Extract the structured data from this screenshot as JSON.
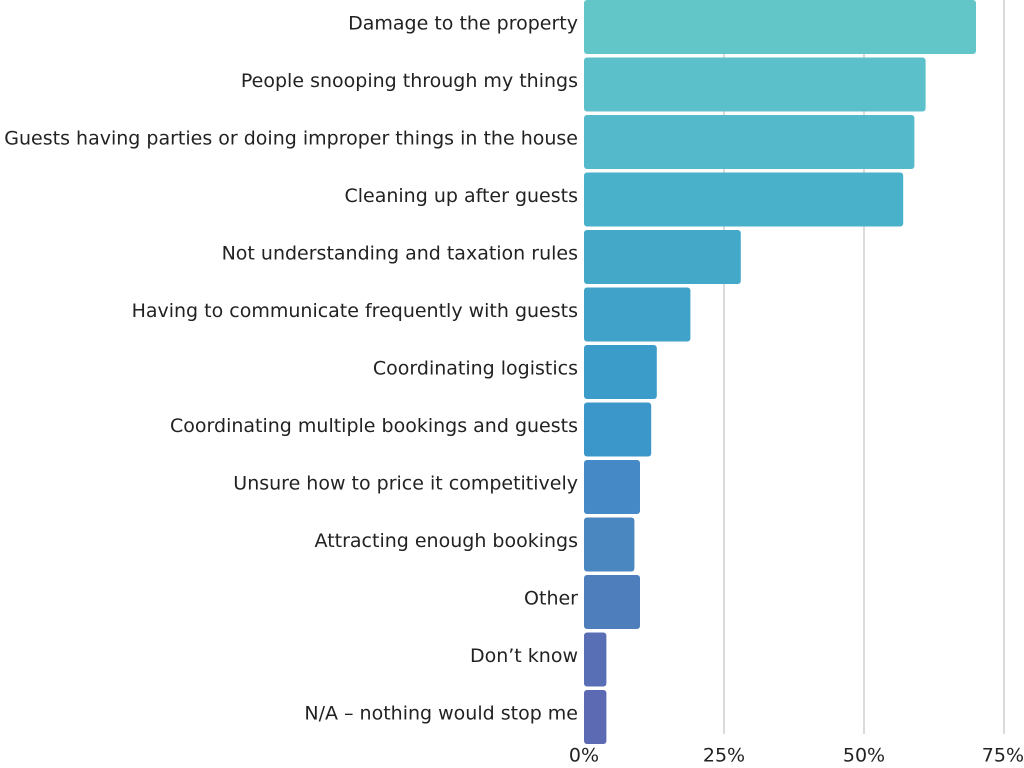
{
  "chart_data": {
    "type": "bar",
    "orientation": "horizontal",
    "categories": [
      "Damage to the property",
      "People snooping through my things",
      "Guests having parties or doing improper things in the house",
      "Cleaning up after guests",
      "Not understanding and taxation rules",
      "Having to communicate frequently with guests",
      "Coordinating logistics",
      "Coordinating multiple bookings and guests",
      "Unsure how to price it competitively",
      "Attracting enough bookings",
      "Other",
      "Don’t know",
      "N/A – nothing would stop me"
    ],
    "values": [
      70,
      61,
      59,
      57,
      28,
      19,
      13,
      12,
      10,
      9,
      10,
      4,
      4
    ],
    "xlim": [
      0,
      75
    ],
    "xticks": [
      0,
      25,
      50,
      75
    ],
    "xtick_labels": [
      "0%",
      "25%",
      "50%",
      "75%"
    ],
    "grid": true,
    "colors": [
      "#62C6C8",
      "#5CC0CA",
      "#54B9CB",
      "#49B1CA",
      "#44A9C9",
      "#40A2C9",
      "#3C9CC9",
      "#3B96C9",
      "#458AC6",
      "#4A86C0",
      "#4F7EBD",
      "#586FB6",
      "#5B6AB3"
    ]
  }
}
